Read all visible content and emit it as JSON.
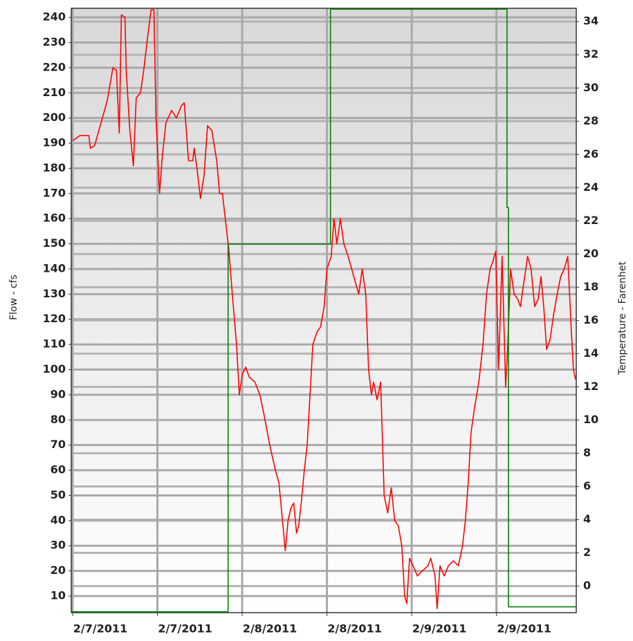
{
  "chart_data": {
    "type": "line",
    "y_label": "Flow - cfs",
    "y2_label": "Temperature - Farenhet",
    "xlim": [
      -0.2,
      71.3
    ],
    "xticks": [
      {
        "value": 0,
        "label": "2/7/2011"
      },
      {
        "value": 12,
        "label": "2/7/2011"
      },
      {
        "value": 24,
        "label": "2/8/2011"
      },
      {
        "value": 36,
        "label": "2/8/2011"
      },
      {
        "value": 48,
        "label": "2/9/2011"
      },
      {
        "value": 60,
        "label": "2/9/2011"
      }
    ],
    "ylim": [
      3.4,
      243.6
    ],
    "yticks": [
      10,
      20,
      30,
      40,
      50,
      60,
      70,
      80,
      90,
      100,
      110,
      120,
      130,
      140,
      150,
      160,
      170,
      180,
      190,
      200,
      210,
      220,
      230,
      240
    ],
    "y2lim": [
      -1.6,
      34.8
    ],
    "y2ticks": [
      0,
      2,
      4,
      6,
      8,
      10,
      12,
      14,
      16,
      18,
      20,
      22,
      24,
      26,
      28,
      30,
      32,
      34
    ],
    "grid": true,
    "series": [
      {
        "name": "Flow",
        "color": "#ff0000",
        "x": [
          0,
          1.0,
          2.3,
          2.5,
          3.1,
          3.9,
          4.9,
          5.7,
          6.2,
          6.6,
          6.9,
          7.4,
          7.6,
          8.1,
          8.6,
          9.0,
          9.6,
          10.1,
          10.6,
          11.1,
          11.5,
          11.8,
          12.3,
          12.7,
          13.2,
          14.0,
          14.7,
          15.4,
          15.8,
          16.4,
          17.0,
          17.2,
          17.6,
          18.1,
          18.6,
          19.1,
          19.7,
          20.4,
          20.8,
          21.2,
          21.6,
          22.1,
          22.6,
          23.2,
          23.6,
          24.0,
          24.5,
          25.0,
          25.8,
          26.5,
          27.1,
          27.9,
          28.7,
          29.2,
          29.7,
          30.1,
          30.5,
          30.9,
          31.3,
          31.7,
          32.0,
          32.4,
          32.8,
          33.2,
          33.6,
          34.0,
          34.6,
          35.1,
          35.6,
          36.0,
          36.6,
          37.0,
          37.4,
          37.9,
          38.4,
          39.0,
          39.5,
          40.0,
          40.5,
          41.0,
          41.5,
          41.9,
          42.3,
          42.6,
          43.1,
          43.6,
          44.1,
          44.6,
          45.1,
          45.6,
          46.1,
          46.6,
          47.0,
          47.3,
          47.7,
          48.2,
          48.8,
          49.5,
          50.3,
          50.7,
          51.3,
          51.6,
          52.0,
          52.6,
          53.2,
          53.9,
          54.6,
          55.2,
          55.6,
          56.0,
          56.4,
          56.9,
          57.5,
          58.1,
          58.6,
          59.1,
          59.5,
          59.9,
          60.3,
          60.8,
          61.3,
          61.6,
          62.0,
          62.5,
          63.0,
          63.4,
          63.9,
          64.4,
          64.9,
          65.4,
          65.9,
          66.3,
          66.7,
          67.1,
          67.6,
          68.1,
          68.6,
          69.1,
          69.6,
          70.1,
          70.6,
          70.9,
          71.2
        ],
        "values": [
          191,
          193,
          193,
          188,
          189,
          197,
          207,
          220,
          219,
          194,
          241,
          240,
          218,
          195,
          181,
          208,
          210,
          220,
          232,
          243,
          243,
          200,
          170,
          185,
          198,
          203,
          200,
          205,
          206,
          183,
          183,
          188,
          180,
          168,
          177,
          197,
          195,
          183,
          170,
          170,
          160,
          148,
          130,
          110,
          90,
          98,
          101,
          97,
          95,
          90,
          82,
          70,
          60,
          55,
          40,
          28,
          40,
          45,
          47,
          35,
          38,
          48,
          60,
          70,
          90,
          110,
          115,
          117,
          125,
          140,
          145,
          160,
          150,
          160,
          150,
          145,
          140,
          135,
          130,
          140,
          130,
          100,
          90,
          95,
          88,
          95,
          50,
          43,
          53,
          40,
          38,
          30,
          10,
          7,
          25,
          22,
          18,
          20,
          22,
          25,
          18,
          5,
          22,
          18,
          22,
          24,
          22,
          30,
          40,
          55,
          75,
          85,
          95,
          110,
          130,
          140,
          143,
          147,
          100,
          145,
          93,
          110,
          140,
          130,
          128,
          125,
          135,
          145,
          140,
          125,
          128,
          137,
          125,
          108,
          112,
          122,
          130,
          137,
          140,
          145,
          115,
          100,
          96
        ]
      },
      {
        "name": "Temperature",
        "color": "#008000",
        "axis": "y2",
        "x": [
          -0.2,
          22.0,
          22.0,
          36.5,
          36.5,
          61.5,
          61.5,
          61.7,
          61.7,
          71.3
        ],
        "values": [
          -1.55,
          -1.55,
          20.6,
          20.6,
          34.75,
          34.75,
          22.8,
          22.8,
          -1.25,
          -1.25
        ]
      }
    ]
  }
}
